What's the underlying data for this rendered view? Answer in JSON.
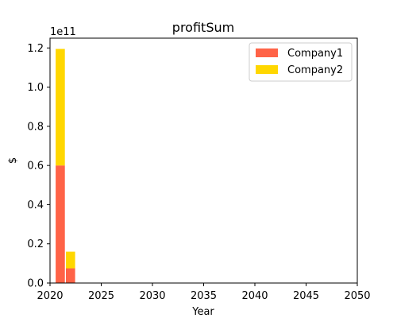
{
  "chart_data": {
    "type": "bar",
    "stacked": true,
    "title": "profitSum",
    "xlabel": "Year",
    "ylabel": "$",
    "y_offset_text": "1e11",
    "xlim": [
      2020,
      2050
    ],
    "ylim": [
      0,
      125000000000
    ],
    "x_ticks": [
      2020,
      2025,
      2030,
      2035,
      2040,
      2045,
      2050
    ],
    "x_tick_labels": [
      "2020",
      "2025",
      "2030",
      "2035",
      "2040",
      "2045",
      "2050"
    ],
    "y_ticks": [
      0,
      20000000000,
      40000000000,
      60000000000,
      80000000000,
      100000000000,
      120000000000
    ],
    "y_tick_labels": [
      "0.0",
      "0.2",
      "0.4",
      "0.6",
      "0.8",
      "1.0",
      "1.2"
    ],
    "x": [
      2021,
      2022
    ],
    "series": [
      {
        "name": "Company1",
        "color": "#ff6347",
        "values": [
          60000000000,
          7500000000
        ]
      },
      {
        "name": "Company2",
        "color": "#ffd700",
        "values": [
          59500000000,
          8500000000
        ]
      }
    ],
    "legend_position": "upper right",
    "grid": false
  }
}
